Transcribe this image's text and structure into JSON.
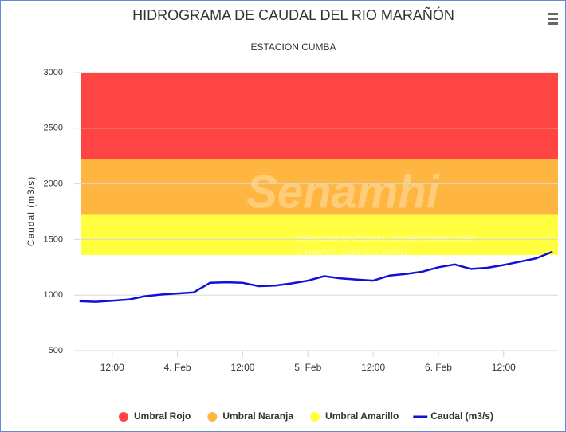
{
  "chart_data": {
    "type": "line",
    "title": "HIDROGRAMA DE CAUDAL DEL RIO MARAÑÓN",
    "subtitle": "ESTACION CUMBA",
    "y_label": "Caudal (m3/s)",
    "watermark": {
      "title": "Senamhi",
      "lines": [
        "SERVICIO NACIONAL DE METEOROLOGÍA",
        "E HIDROLOGÍA DEL PERÚ"
      ]
    },
    "x": [
      "3. Feb 06:00",
      "3. Feb 09:00",
      "3. Feb 12:00",
      "3. Feb 15:00",
      "3. Feb 18:00",
      "3. Feb 21:00",
      "4. Feb 00:00",
      "4. Feb 03:00",
      "4. Feb 06:00",
      "4. Feb 09:00",
      "4. Feb 12:00",
      "4. Feb 15:00",
      "4. Feb 18:00",
      "4. Feb 21:00",
      "5. Feb 00:00",
      "5. Feb 03:00",
      "5. Feb 06:00",
      "5. Feb 09:00",
      "5. Feb 12:00",
      "5. Feb 15:00",
      "5. Feb 18:00",
      "5. Feb 21:00",
      "6. Feb 00:00",
      "6. Feb 03:00",
      "6. Feb 06:00",
      "6. Feb 09:00",
      "6. Feb 12:00",
      "6. Feb 15:00",
      "6. Feb 18:00",
      "6. Feb 21:00"
    ],
    "series": [
      {
        "name": "Caudal (m3/s)",
        "color": "#1010d8",
        "values": [
          945,
          940,
          950,
          960,
          990,
          1005,
          1015,
          1025,
          1110,
          1115,
          1110,
          1080,
          1085,
          1105,
          1130,
          1170,
          1150,
          1140,
          1130,
          1175,
          1190,
          1210,
          1250,
          1275,
          1235,
          1245,
          1270,
          1300,
          1330,
          1390
        ]
      }
    ],
    "plot_bands": [
      {
        "name": "Umbral Rojo",
        "color": "#ff4444",
        "from": 2220,
        "to": 3000
      },
      {
        "name": "Umbral Naranja",
        "color": "#ffb640",
        "from": 1720,
        "to": 2220
      },
      {
        "name": "Umbral Amarillo",
        "color": "#ffff40",
        "from": 1360,
        "to": 1720
      }
    ],
    "xlim": [
      "3. Feb 05:00",
      "6. Feb 22:00"
    ],
    "xticks": [
      {
        "value": "3. Feb 12:00",
        "label": "12:00"
      },
      {
        "value": "4. Feb 00:00",
        "label": "4. Feb"
      },
      {
        "value": "4. Feb 12:00",
        "label": "12:00"
      },
      {
        "value": "5. Feb 00:00",
        "label": "5. Feb"
      },
      {
        "value": "5. Feb 12:00",
        "label": "12:00"
      },
      {
        "value": "6. Feb 00:00",
        "label": "6. Feb"
      },
      {
        "value": "6. Feb 12:00",
        "label": "12:00"
      }
    ],
    "ylim": [
      500,
      3000
    ],
    "yticks": [
      500,
      1000,
      1500,
      2000,
      2500,
      3000
    ],
    "grid": true,
    "legend": "bottom"
  }
}
